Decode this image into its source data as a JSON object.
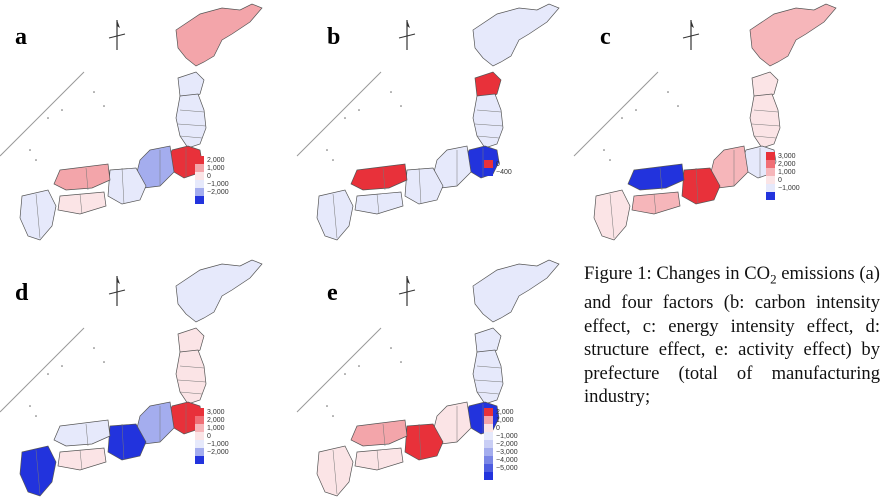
{
  "panels": [
    {
      "label": "a",
      "legend": [
        "2,000",
        "1,000",
        "0",
        "−1,000",
        "−2,000"
      ],
      "colors": [
        "#e8313a",
        "#f3a5aa",
        "#fbe4e6",
        "#e6e9fb",
        "#a4adee",
        "#2233dd"
      ]
    },
    {
      "label": "b",
      "legend": [
        "0",
        "−400"
      ],
      "colors": [
        "#e8313a",
        "#2233dd"
      ]
    },
    {
      "label": "c",
      "legend": [
        "3,000",
        "2,000",
        "1,000",
        "0",
        "−1,000"
      ],
      "colors": [
        "#e8313a",
        "#f06f76",
        "#f6b6ba",
        "#fbe4e6",
        "#e6e9fb",
        "#2233dd"
      ]
    },
    {
      "label": "d",
      "legend": [
        "3,000",
        "2,000",
        "1,000",
        "0",
        "−1,000",
        "−2,000"
      ],
      "colors": [
        "#e8313a",
        "#f06f76",
        "#f6b6ba",
        "#fbe4e6",
        "#e6e9fb",
        "#a4adee",
        "#2233dd"
      ]
    },
    {
      "label": "e",
      "legend": [
        "2,000",
        "1,000",
        "0",
        "−1,000",
        "−2,000",
        "−3,000",
        "−4,000",
        "−5,000"
      ],
      "colors": [
        "#e8313a",
        "#f3a5aa",
        "#fbe4e6",
        "#e6e9fb",
        "#c9cef5",
        "#a4adee",
        "#7a86e6",
        "#4d5ce0",
        "#2233dd"
      ]
    }
  ],
  "caption": {
    "line1": "Figure 1: Changes in CO",
    "line1_sub": "2",
    "rest": " emissions (a) and four factors (b: carbon intensity effect, c: energy intensity effect, d: structure effect, e: activity effect) by prefecture (total of manufacturing industry;"
  }
}
